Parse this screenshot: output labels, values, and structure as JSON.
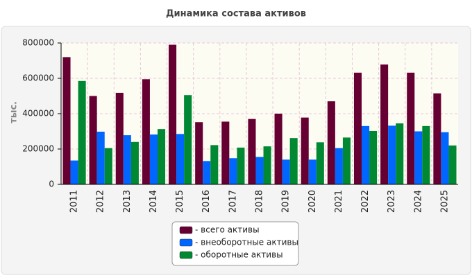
{
  "chart_data": {
    "type": "bar",
    "title": "Динамика состава активов",
    "y_label": "тыс.",
    "categories": [
      "2011",
      "2012",
      "2013",
      "2014",
      "2015",
      "2016",
      "2017",
      "2018",
      "2019",
      "2020",
      "2021",
      "2022",
      "2023",
      "2024",
      "2025"
    ],
    "series": [
      {
        "name": "- всего активы",
        "color": "#660033",
        "values": [
          720000,
          500000,
          518000,
          595000,
          790000,
          352000,
          355000,
          370000,
          400000,
          378000,
          470000,
          632000,
          678000,
          632000,
          515000
        ]
      },
      {
        "name": "- внеоборотные активы",
        "color": "#0066ff",
        "values": [
          135000,
          298000,
          278000,
          282000,
          285000,
          132000,
          148000,
          155000,
          140000,
          140000,
          205000,
          330000,
          332000,
          300000,
          295000
        ]
      },
      {
        "name": "- оборотные активы",
        "color": "#008833",
        "values": [
          585000,
          205000,
          240000,
          313000,
          505000,
          222000,
          208000,
          215000,
          262000,
          238000,
          265000,
          302000,
          345000,
          330000,
          220000
        ]
      }
    ],
    "ylim": [
      0,
      800000
    ],
    "yticks": [
      0,
      200000,
      400000,
      600000,
      800000
    ],
    "grid": true
  }
}
